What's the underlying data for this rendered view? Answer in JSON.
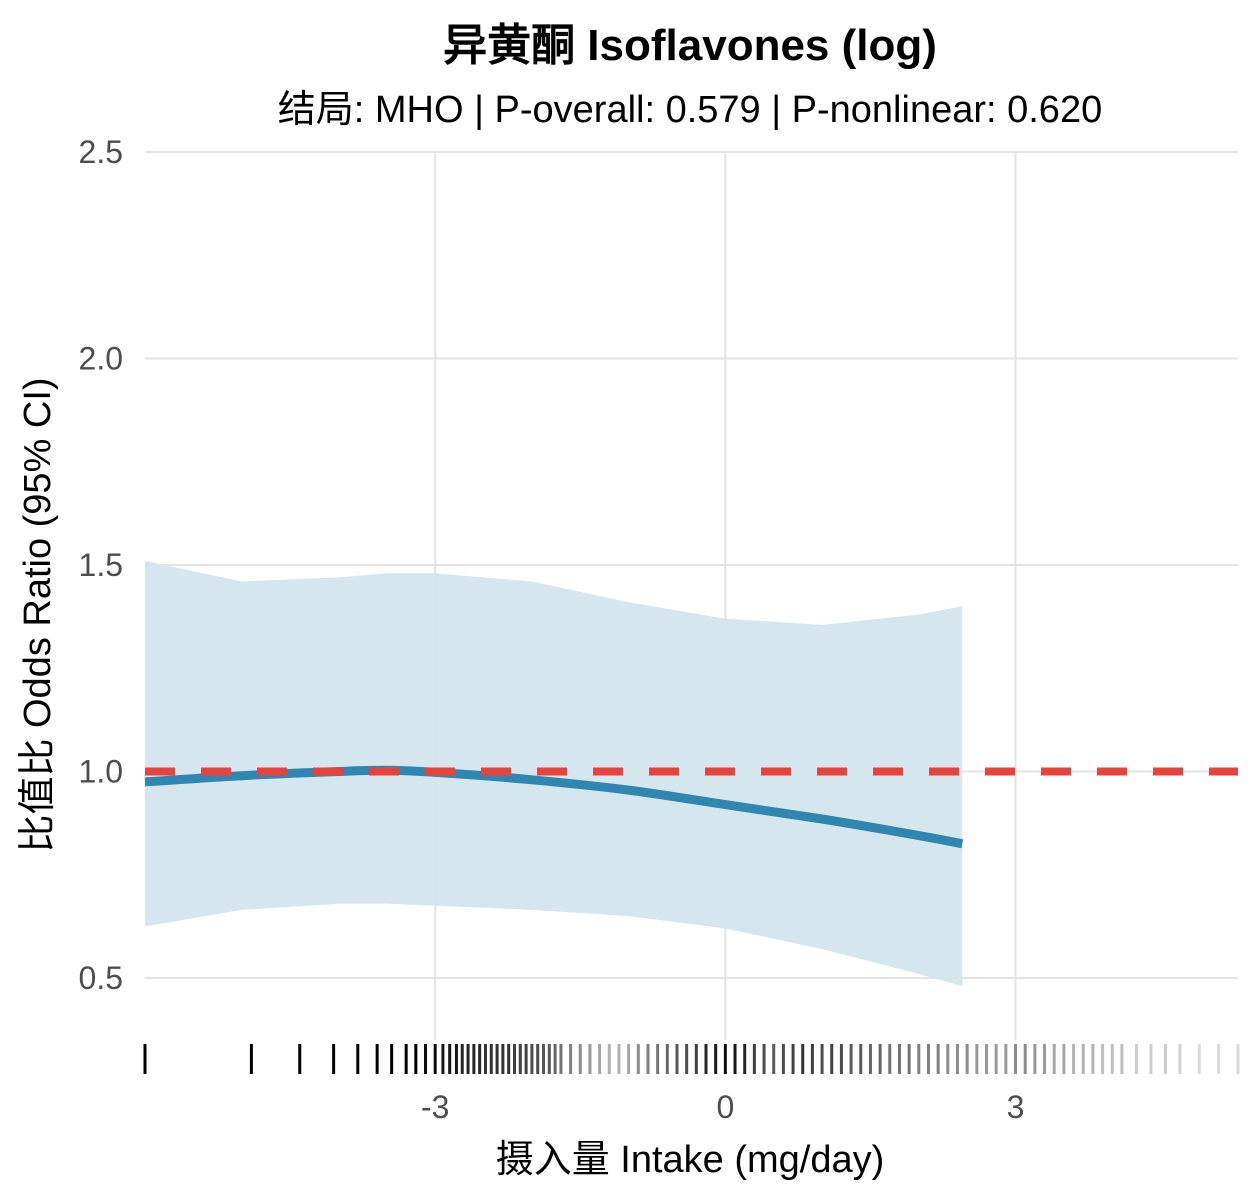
{
  "chart_data": {
    "type": "line",
    "title": "异黄酮 Isoflavones (log)",
    "subtitle": "结局: MHO | P-overall: 0.579 | P-nonlinear: 0.620",
    "xlabel": "摄入量 Intake (mg/day)",
    "ylabel": "比值比 Odds Ratio (95% CI)",
    "xlim": [
      -6.0,
      5.3
    ],
    "ylim": [
      0.35,
      2.5
    ],
    "x_ticks": [
      -3,
      0,
      3
    ],
    "x_tick_labels": [
      "-3",
      "0",
      "3"
    ],
    "y_ticks": [
      0.5,
      1.0,
      1.5,
      2.0,
      2.5
    ],
    "y_tick_labels": [
      "0.5",
      "1.0",
      "1.5",
      "2.0",
      "2.5"
    ],
    "grid": true,
    "reference_line": {
      "y": 1.0,
      "style": "dashed",
      "color": "#e8423a"
    },
    "series": [
      {
        "color": "#2e86b1",
        "x": [
          -6.0,
          -5.0,
          -4.0,
          -3.5,
          -3.0,
          -2.0,
          -1.0,
          0.0,
          1.0,
          2.0,
          2.45
        ],
        "y": [
          0.975,
          0.99,
          1.0,
          1.003,
          0.998,
          0.98,
          0.955,
          0.92,
          0.885,
          0.845,
          0.825
        ]
      }
    ],
    "confidence_band": {
      "color": "#d4e5ee",
      "x": [
        -6.0,
        -5.0,
        -4.0,
        -3.5,
        -3.0,
        -2.0,
        -1.0,
        0.0,
        1.0,
        2.0,
        2.45
      ],
      "upper": [
        1.51,
        1.46,
        1.47,
        1.48,
        1.48,
        1.46,
        1.41,
        1.37,
        1.355,
        1.38,
        1.4
      ],
      "lower": [
        0.625,
        0.665,
        0.68,
        0.68,
        0.675,
        0.665,
        0.65,
        0.62,
        0.57,
        0.51,
        0.48
      ]
    },
    "rug_x": [
      -6.0,
      -4.9,
      -4.4,
      -4.05,
      -3.8,
      -3.6,
      -3.45,
      -3.3,
      -3.2,
      -3.1,
      -3.0,
      -2.92,
      -2.85,
      -2.78,
      -2.72,
      -2.66,
      -2.6,
      -2.54,
      -2.48,
      -2.42,
      -2.36,
      -2.3,
      -2.24,
      -2.18,
      -2.12,
      -2.06,
      -2.0,
      -1.94,
      -1.88,
      -1.82,
      -1.76,
      -1.7,
      -1.6,
      -1.5,
      -1.4,
      -1.3,
      -1.2,
      -1.1,
      -1.0,
      -0.9,
      -0.8,
      -0.7,
      -0.6,
      -0.5,
      -0.4,
      -0.3,
      -0.2,
      -0.1,
      0.0,
      0.1,
      0.2,
      0.3,
      0.4,
      0.5,
      0.6,
      0.7,
      0.8,
      0.9,
      1.0,
      1.1,
      1.2,
      1.3,
      1.4,
      1.5,
      1.6,
      1.7,
      1.8,
      1.9,
      2.0,
      2.1,
      2.2,
      2.3,
      2.4,
      2.5,
      2.6,
      2.7,
      2.8,
      2.9,
      3.0,
      3.1,
      3.2,
      3.3,
      3.4,
      3.5,
      3.6,
      3.7,
      3.8,
      3.9,
      4.0,
      4.1,
      4.25,
      4.4,
      4.55,
      4.7,
      4.9,
      5.1,
      5.3
    ],
    "rug_opacity": [
      1,
      1,
      1,
      1,
      1,
      1,
      1,
      1,
      1,
      0.95,
      0.95,
      0.9,
      0.9,
      0.9,
      0.85,
      0.85,
      0.85,
      0.85,
      0.8,
      0.8,
      0.8,
      0.8,
      0.8,
      0.75,
      0.75,
      0.75,
      0.7,
      0.7,
      0.65,
      0.65,
      0.6,
      0.55,
      0.5,
      0.45,
      0.4,
      0.35,
      0.3,
      0.3,
      0.35,
      0.45,
      0.5,
      0.55,
      0.6,
      0.65,
      0.7,
      0.75,
      0.85,
      0.9,
      0.95,
      0.9,
      0.85,
      0.75,
      0.7,
      0.65,
      0.7,
      0.75,
      0.8,
      0.75,
      0.7,
      0.75,
      0.7,
      0.65,
      0.65,
      0.6,
      0.6,
      0.55,
      0.55,
      0.55,
      0.5,
      0.5,
      0.5,
      0.45,
      0.45,
      0.45,
      0.4,
      0.4,
      0.4,
      0.4,
      0.45,
      0.45,
      0.4,
      0.4,
      0.35,
      0.35,
      0.3,
      0.3,
      0.3,
      0.25,
      0.25,
      0.25,
      0.2,
      0.2,
      0.2,
      0.18,
      0.15,
      0.15,
      0.15
    ]
  }
}
